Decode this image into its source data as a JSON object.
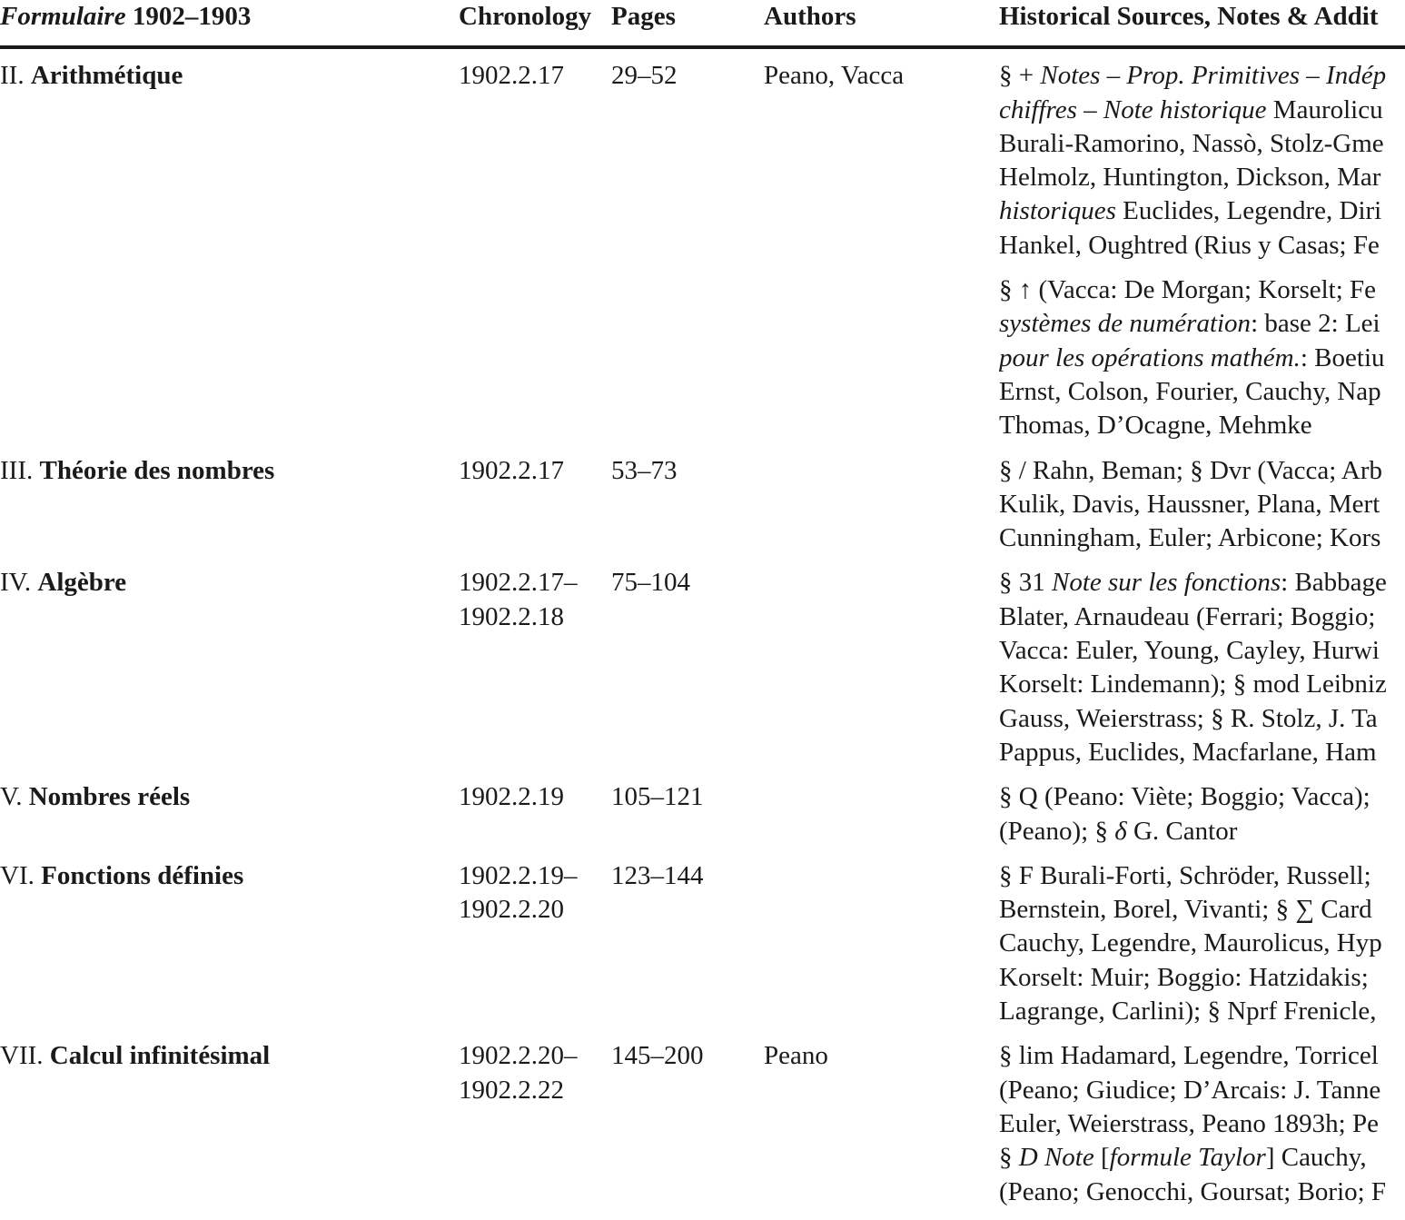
{
  "header": [
    "Formulaire 1902–1903",
    "Chronology",
    "Pages",
    "Authors",
    "Historical Sources, Notes & Addit"
  ],
  "header_runs": [
    [
      {
        "text": "Formulaire",
        "em": true
      },
      " 1902–1903"
    ]
  ],
  "rows": [
    {
      "title": [
        "II. ",
        {
          "text": "Arithmétique",
          "strong": true
        }
      ],
      "chronology": [
        "1902.2.17"
      ],
      "pages": "29–52",
      "authors": "Peano, Vacca",
      "notes": [
        [
          [
            "§ + ",
            {
              "text": "Notes – Prop. Primitives – Indép",
              "em": true
            }
          ],
          [
            {
              "text": "chiffres – Note historique",
              "em": true
            },
            " Maurolicu"
          ],
          [
            "Burali-Ramorino, Nassò, Stolz-Gme"
          ],
          [
            "Helmolz, Huntington, Dickson, Mar"
          ],
          [
            {
              "text": "historiques",
              "em": true
            },
            " Euclides, Legendre, Diri"
          ],
          [
            "Hankel, Oughtred (Rius y Casas; Fe"
          ]
        ],
        [
          [
            "§ ↑ (Vacca: De Morgan; Korselt; Fe"
          ],
          [
            {
              "text": "systèmes de numération",
              "em": true
            },
            ": base 2: Lei"
          ],
          [
            {
              "text": "pour les opérations mathém.",
              "em": true
            },
            ": Boetiu"
          ],
          [
            "Ernst, Colson, Fourier, Cauchy, Nap"
          ],
          [
            "Thomas, D’Ocagne, Mehmke"
          ]
        ]
      ]
    },
    {
      "title": [
        "III. ",
        {
          "text": "Théorie des nombres",
          "strong": true
        }
      ],
      "chronology": [
        "1902.2.17"
      ],
      "pages": "53–73",
      "notes": [
        [
          [
            "§ / Rahn, Beman; § Dvr (Vacca; Arb"
          ],
          [
            "Kulik, Davis, Haussner, Plana, Mert"
          ],
          [
            "Cunningham, Euler; Arbicone; Kors"
          ]
        ]
      ]
    },
    {
      "title": [
        "IV. ",
        {
          "text": "Algèbre",
          "strong": true
        }
      ],
      "chronology": [
        "1902.2.17–",
        "1902.2.18"
      ],
      "pages": "75–104",
      "notes": [
        [
          [
            "§ 31 ",
            {
              "text": "Note sur les fonctions",
              "em": true
            },
            ": Babbage"
          ],
          [
            "Blater, Arnaudeau (Ferrari; Boggio;"
          ],
          [
            "Vacca: Euler, Young, Cayley, Hurwi"
          ],
          [
            "Korselt: Lindemann); § mod Leibniz"
          ],
          [
            "Gauss, Weierstrass; § R. Stolz, J. Ta"
          ],
          [
            "Pappus, Euclides, Macfarlane, Ham"
          ]
        ]
      ]
    },
    {
      "title": [
        "V. ",
        {
          "text": "Nombres réels",
          "strong": true
        }
      ],
      "chronology": [
        "1902.2.19"
      ],
      "pages": "105–121",
      "notes": [
        [
          [
            "§ Q (Peano: Viète; Boggio; Vacca); "
          ],
          [
            "(Peano); § ",
            {
              "text": "δ",
              "em": true
            },
            " G. Cantor"
          ]
        ]
      ]
    },
    {
      "title": [
        "VI. ",
        {
          "text": "Fonctions définies",
          "strong": true
        }
      ],
      "chronology": [
        "1902.2.19–",
        "1902.2.20"
      ],
      "pages": "123–144",
      "notes": [
        [
          [
            "§ F Burali-Forti, Schröder, Russell; "
          ],
          [
            "Bernstein, Borel, Vivanti; § ∑ Card"
          ],
          [
            "Cauchy, Legendre, Maurolicus, Hyp"
          ],
          [
            "Korselt: Muir; Boggio: Hatzidakis; "
          ],
          [
            "Lagrange, Carlini); § Nprf Frenicle,"
          ]
        ]
      ]
    },
    {
      "title": [
        "VII. ",
        {
          "text": "Calcul infinitésimal",
          "strong": true
        }
      ],
      "chronology": [
        "1902.2.20–",
        "1902.2.22"
      ],
      "pages": "145–200",
      "authors": "Peano",
      "notes": [
        [
          [
            "§ lim Hadamard, Legendre, Torricel"
          ],
          [
            "(Peano; Giudice; D’Arcais: J. Tanne"
          ],
          [
            "Euler, Weierstrass, Peano 1893h; Pe"
          ],
          [
            "§ ",
            {
              "text": "D",
              "em": true
            },
            " ",
            {
              "text": "Note",
              "em": true
            },
            " [",
            {
              "text": "formule Taylor",
              "em": true
            },
            "] Cauchy,"
          ],
          [
            "(Peano; Genocchi, Goursat; Borio; F"
          ]
        ]
      ]
    }
  ]
}
